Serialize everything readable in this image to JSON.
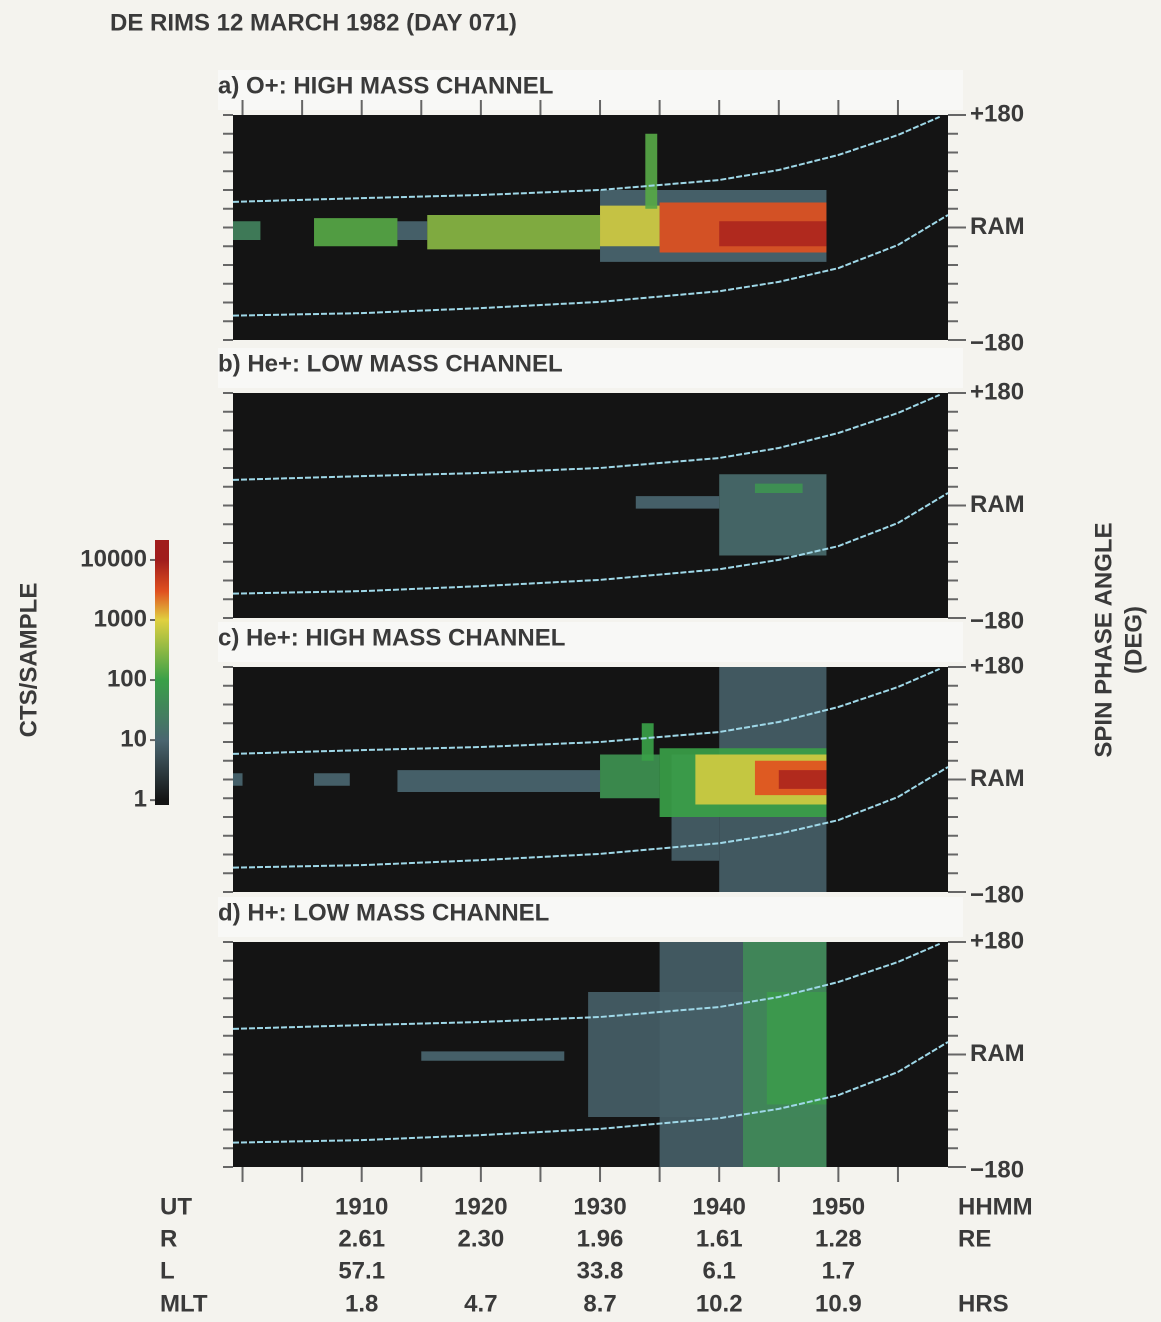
{
  "chart_data": {
    "type": "spectrogram",
    "title": "DE RIMS 12 MARCH 1982 (DAY 071)",
    "xlim": [
      1899.2,
      1959.2
    ],
    "xticks": [
      1900,
      1905,
      1910,
      1915,
      1920,
      1925,
      1930,
      1935,
      1940,
      1945,
      1950,
      1955
    ],
    "ylim": [
      -180,
      180
    ],
    "yticks": [
      {
        "value": 180,
        "label": "+180"
      },
      {
        "value": 0,
        "label": "RAM"
      },
      {
        "value": -180,
        "label": "−180"
      }
    ],
    "yminor": [
      -150,
      -120,
      -90,
      -60,
      -30,
      30,
      60,
      90,
      120,
      150
    ],
    "ylabel": [
      "SPIN PHASE ANGLE",
      "(DEG)"
    ],
    "curves": [
      {
        "color": "#9fd8e8",
        "x": [
          1899.2,
          1910,
          1920,
          1930,
          1940,
          1945,
          1950,
          1955,
          1958.5
        ],
        "y": [
          41,
          47,
          52,
          60,
          76,
          92,
          116,
          148,
          177
        ]
      },
      {
        "color": "#9fd8e8",
        "x": [
          1899.2,
          1910,
          1920,
          1930,
          1940,
          1945,
          1950,
          1955,
          1959.2
        ],
        "y": [
          -141,
          -137,
          -129,
          -119,
          -102,
          -87,
          -65,
          -28,
          20
        ]
      }
    ],
    "panels": [
      {
        "title": "a) O+: HIGH MASS CHANNEL",
        "regions": [
          {
            "t0": 1899.2,
            "t1": 1901.5,
            "a0": -20,
            "a1": 10,
            "value": 30
          },
          {
            "t0": 1930,
            "t1": 1949,
            "a0": -55,
            "a1": 60,
            "value": 10
          },
          {
            "t0": 1906,
            "t1": 1913,
            "a0": -30,
            "a1": 15,
            "value": 150
          },
          {
            "t0": 1913,
            "t1": 1915.5,
            "a0": -20,
            "a1": 10,
            "value": 10
          },
          {
            "t0": 1915.5,
            "t1": 1930,
            "a0": -35,
            "a1": 20,
            "value": 300
          },
          {
            "t0": 1930,
            "t1": 1935,
            "a0": -30,
            "a1": 35,
            "value": 800
          },
          {
            "t0": 1933.8,
            "t1": 1934.8,
            "a0": 30,
            "a1": 150,
            "value": 150
          },
          {
            "t0": 1935,
            "t1": 1949,
            "a0": -40,
            "a1": 40,
            "value": 3000
          },
          {
            "t0": 1940,
            "t1": 1949,
            "a0": -30,
            "a1": 10,
            "value": 8000
          }
        ]
      },
      {
        "title": "b) He+: LOW MASS CHANNEL",
        "regions": [
          {
            "t0": 1933,
            "t1": 1940,
            "a0": -5,
            "a1": 15,
            "value": 10
          },
          {
            "t0": 1940,
            "t1": 1949,
            "a0": -80,
            "a1": 50,
            "value": 12
          },
          {
            "t0": 1943,
            "t1": 1947,
            "a0": 20,
            "a1": 35,
            "value": 60
          }
        ]
      },
      {
        "title": "c) He+: HIGH MASS CHANNEL",
        "regions": [
          {
            "t0": 1899.2,
            "t1": 1900,
            "a0": -10,
            "a1": 10,
            "value": 10
          },
          {
            "t0": 1906,
            "t1": 1909,
            "a0": -10,
            "a1": 10,
            "value": 10
          },
          {
            "t0": 1913,
            "t1": 1930,
            "a0": -20,
            "a1": 15,
            "value": 10
          },
          {
            "t0": 1940,
            "t1": 1949,
            "a0": -180,
            "a1": 180,
            "value": 8
          },
          {
            "t0": 1936,
            "t1": 1940,
            "a0": -130,
            "a1": 40,
            "value": 8
          },
          {
            "t0": 1930,
            "t1": 1935,
            "a0": -30,
            "a1": 40,
            "value": 60
          },
          {
            "t0": 1933.5,
            "t1": 1934.5,
            "a0": 30,
            "a1": 90,
            "value": 100
          },
          {
            "t0": 1935,
            "t1": 1949,
            "a0": -60,
            "a1": 50,
            "value": 100
          },
          {
            "t0": 1938,
            "t1": 1949,
            "a0": -40,
            "a1": 40,
            "value": 800
          },
          {
            "t0": 1943,
            "t1": 1949,
            "a0": -25,
            "a1": 30,
            "value": 3000
          },
          {
            "t0": 1945,
            "t1": 1949,
            "a0": -15,
            "a1": 15,
            "value": 8000
          }
        ]
      },
      {
        "title": "d) H+: LOW MASS CHANNEL",
        "regions": [
          {
            "t0": 1915,
            "t1": 1927,
            "a0": -10,
            "a1": 5,
            "value": 10
          },
          {
            "t0": 1929,
            "t1": 1949,
            "a0": -100,
            "a1": 100,
            "value": 8
          },
          {
            "t0": 1935,
            "t1": 1949,
            "a0": -180,
            "a1": 180,
            "value": 8
          },
          {
            "t0": 1942,
            "t1": 1949,
            "a0": -180,
            "a1": 180,
            "value": 40
          },
          {
            "t0": 1944,
            "t1": 1949,
            "a0": -80,
            "a1": 100,
            "value": 80
          }
        ]
      }
    ],
    "colorbar": {
      "label": "CTS/SAMPLE",
      "scale": "log",
      "lim": [
        0.83,
        21500
      ],
      "ticks": [
        1,
        10,
        100,
        1000,
        10000
      ],
      "colorscale": [
        {
          "value": 1,
          "color": "#141414"
        },
        {
          "value": 10,
          "color": "#4a6670"
        },
        {
          "value": 100,
          "color": "#3aa048"
        },
        {
          "value": 1000,
          "color": "#e0d040"
        },
        {
          "value": 3000,
          "color": "#e05020"
        },
        {
          "value": 10000,
          "color": "#a01c1c"
        }
      ]
    },
    "ephemeris": {
      "name": "UT",
      "unit": "HHMM",
      "times": [
        1910,
        1920,
        1930,
        1940,
        1950
      ],
      "rows": [
        {
          "name": "R",
          "unit": "RE",
          "values": [
            2.61,
            2.3,
            1.96,
            1.61,
            1.28
          ],
          "value_labels": [
            "2.61",
            "2.30",
            "1.96",
            "1.61",
            "1.28"
          ]
        },
        {
          "name": "L",
          "values": [
            57.1,
            null,
            33.8,
            6.1,
            1.7
          ]
        },
        {
          "name": "MLT",
          "unit": "HRS",
          "values": [
            1.8,
            4.7,
            8.7,
            10.2,
            10.9
          ]
        }
      ]
    }
  }
}
